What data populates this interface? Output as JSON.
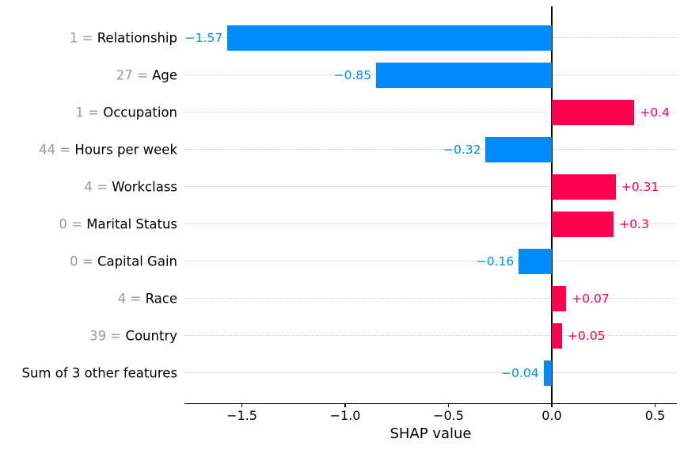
{
  "chart_data": {
    "type": "bar",
    "orientation": "horizontal",
    "title": "",
    "xlabel": "SHAP value",
    "xlim": [
      -1.777,
      0.606
    ],
    "grid": "horizontal-dotted",
    "zero_line": true,
    "legend": false,
    "separator": " = ",
    "x_ticks": [
      {
        "value": -1.5,
        "label": "−1.5"
      },
      {
        "value": -1.0,
        "label": "−1.0"
      },
      {
        "value": -0.5,
        "label": "−0.5"
      },
      {
        "value": 0.0,
        "label": "0.0"
      },
      {
        "value": 0.5,
        "label": "0.5"
      }
    ],
    "features": [
      {
        "feature_value": "1",
        "name": "Relationship",
        "shap": -1.57,
        "value_label": "−1.57"
      },
      {
        "feature_value": "27",
        "name": "Age",
        "shap": -0.85,
        "value_label": "−0.85"
      },
      {
        "feature_value": "1",
        "name": "Occupation",
        "shap": 0.4,
        "value_label": "+0.4"
      },
      {
        "feature_value": "44",
        "name": "Hours per week",
        "shap": -0.32,
        "value_label": "−0.32"
      },
      {
        "feature_value": "4",
        "name": "Workclass",
        "shap": 0.31,
        "value_label": "+0.31"
      },
      {
        "feature_value": "0",
        "name": "Marital Status",
        "shap": 0.3,
        "value_label": "+0.3"
      },
      {
        "feature_value": "0",
        "name": "Capital Gain",
        "shap": -0.16,
        "value_label": "−0.16"
      },
      {
        "feature_value": "4",
        "name": "Race",
        "shap": 0.07,
        "value_label": "+0.07"
      },
      {
        "feature_value": "39",
        "name": "Country",
        "shap": 0.05,
        "value_label": "+0.05"
      },
      {
        "feature_value": null,
        "name": "Sum of 3 other features",
        "shap": -0.04,
        "value_label": "−0.04"
      }
    ],
    "colors": {
      "positive_bar": "#ff0051",
      "negative_bar": "#008bfb",
      "positive_text": "#ff0051",
      "negative_text": "#008bfb",
      "feature_value_text": "#999999",
      "feature_name_text": "#000000",
      "grid_line": "#cccccc",
      "zero_line": "#000000",
      "axis_text": "#000000"
    }
  }
}
